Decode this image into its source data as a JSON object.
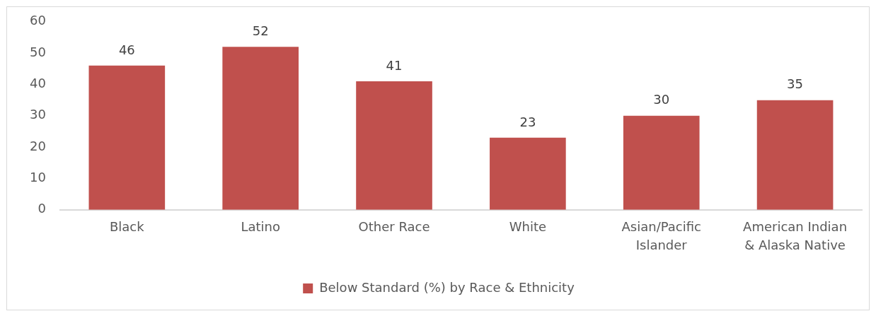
{
  "chart_data": {
    "type": "bar",
    "categories": [
      "Black",
      "Latino",
      "Other Race",
      "White",
      "Asian/Pacific Islander",
      "American Indian & Alaska Native"
    ],
    "series": [
      {
        "name": "Below Standard (%) by Race & Ethnicity",
        "color": "#c0504d",
        "values": [
          46,
          52,
          41,
          23,
          30,
          35
        ]
      }
    ],
    "ylim": [
      0,
      60
    ],
    "yticks": [
      0,
      10,
      20,
      30,
      40,
      50,
      60
    ],
    "data_labels": true,
    "legend": "bottom"
  }
}
